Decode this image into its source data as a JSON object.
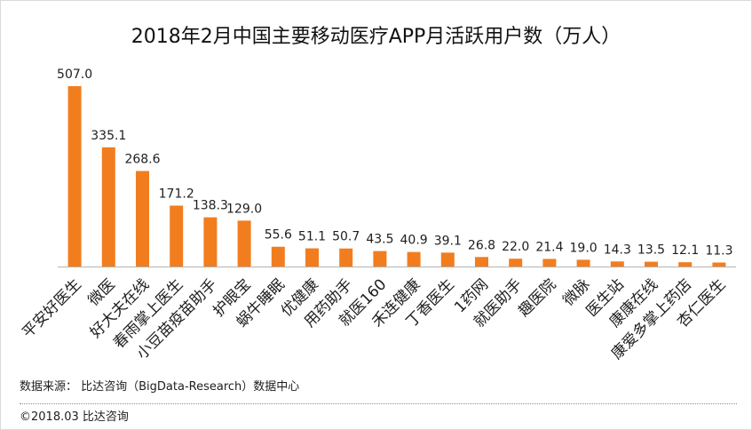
{
  "chart_data": {
    "type": "bar",
    "title": "2018年2月中国主要移动医疗APP月活跃用户数（万人）",
    "categories": [
      "平安好医生",
      "微医",
      "好大夫在线",
      "春雨掌上医生",
      "小豆苗疫苗助手",
      "护眼宝",
      "蜗牛睡眠",
      "优健康",
      "用药助手",
      "就医160",
      "禾连健康",
      "丁香医生",
      "1药网",
      "就医助手",
      "趣医院",
      "微脉",
      "医生站",
      "康康在线",
      "康爱多掌上药店",
      "杏仁医生"
    ],
    "values": [
      507.0,
      335.1,
      268.6,
      171.2,
      138.3,
      129.0,
      55.6,
      51.1,
      50.7,
      43.5,
      40.9,
      39.1,
      26.8,
      22.0,
      21.4,
      19.0,
      14.3,
      13.5,
      12.1,
      11.3
    ],
    "data_labels": [
      "507.0",
      "335.1",
      "268.6",
      "171.2",
      "138.3",
      "129.0",
      "55.6",
      "51.1",
      "50.7",
      "43.5",
      "40.9",
      "39.1",
      "26.8",
      "22.0",
      "21.4",
      "19.0",
      "14.3",
      "13.5",
      "12.1",
      "11.3"
    ],
    "xlabel": "",
    "ylabel": "",
    "grid": false
  },
  "footer": {
    "source": "数据来源： 比达咨询（BigData-Research）数据中心",
    "copyright": "©2018.03 比达咨询"
  },
  "colors": {
    "bar": "#F27D1F",
    "axis": "#B3B3B3",
    "title": "#111111",
    "text": "#1E1E1E",
    "divider": "#8C8C8C"
  }
}
